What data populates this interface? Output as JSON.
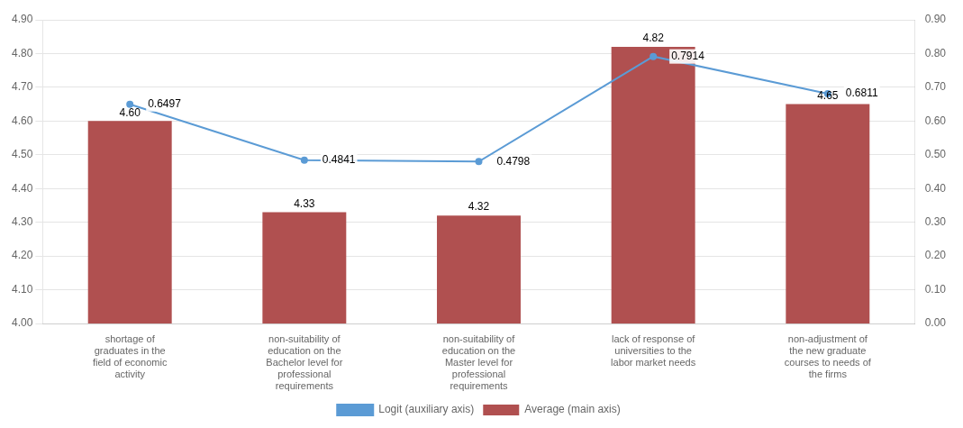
{
  "chart_data": {
    "type": "bar",
    "categories": [
      "shortage of\ngraduates in the\nfield of economic\nactivity",
      "non-suitability of\neducation on the\nBachelor level for\nprofessional\nrequirements",
      "non-suitability of\neducation on the\nMaster level for\nprofessional\nrequirements",
      "lack of response of\nuniversities to the\nlabor market needs",
      "non-adjustment of\nthe new graduate\ncourses to needs of\nthe firms"
    ],
    "series": [
      {
        "name": "Average (main axis)",
        "type": "bar",
        "color": "#b05050",
        "values": [
          4.6,
          4.33,
          4.32,
          4.82,
          4.65
        ],
        "value_labels": [
          "4.60",
          "4.33",
          "4.32",
          "4.82",
          "4.65"
        ]
      },
      {
        "name": "Logit (auxiliary axis)",
        "type": "line",
        "color": "#5b9bd5",
        "axis": "y2",
        "values": [
          0.6497,
          0.4841,
          0.4798,
          0.7914,
          0.6811
        ]
      }
    ],
    "ylim": [
      4.0,
      4.9
    ],
    "yticks": [
      {
        "value": 4.0,
        "label": "4.00"
      },
      {
        "value": 4.1,
        "label": "4.10"
      },
      {
        "value": 4.2,
        "label": "4.20"
      },
      {
        "value": 4.3,
        "label": "4.30"
      },
      {
        "value": 4.4,
        "label": "4.40"
      },
      {
        "value": 4.5,
        "label": "4.50"
      },
      {
        "value": 4.6,
        "label": "4.60"
      },
      {
        "value": 4.7,
        "label": "4.70"
      },
      {
        "value": 4.8,
        "label": "4.80"
      },
      {
        "value": 4.9,
        "label": "4.90"
      }
    ],
    "y2lim": [
      0.0,
      0.9
    ],
    "y2ticks": [
      {
        "value": 0.0,
        "label": "0.00"
      },
      {
        "value": 0.1,
        "label": "0.10"
      },
      {
        "value": 0.2,
        "label": "0.20"
      },
      {
        "value": 0.3,
        "label": "0.30"
      },
      {
        "value": 0.4,
        "label": "0.40"
      },
      {
        "value": 0.5,
        "label": "0.50"
      },
      {
        "value": 0.6,
        "label": "0.60"
      },
      {
        "value": 0.7,
        "label": "0.70"
      },
      {
        "value": 0.8,
        "label": "0.80"
      },
      {
        "value": 0.9,
        "label": "0.90"
      }
    ],
    "grid": true,
    "legend": "bottom",
    "data_labels": true
  }
}
